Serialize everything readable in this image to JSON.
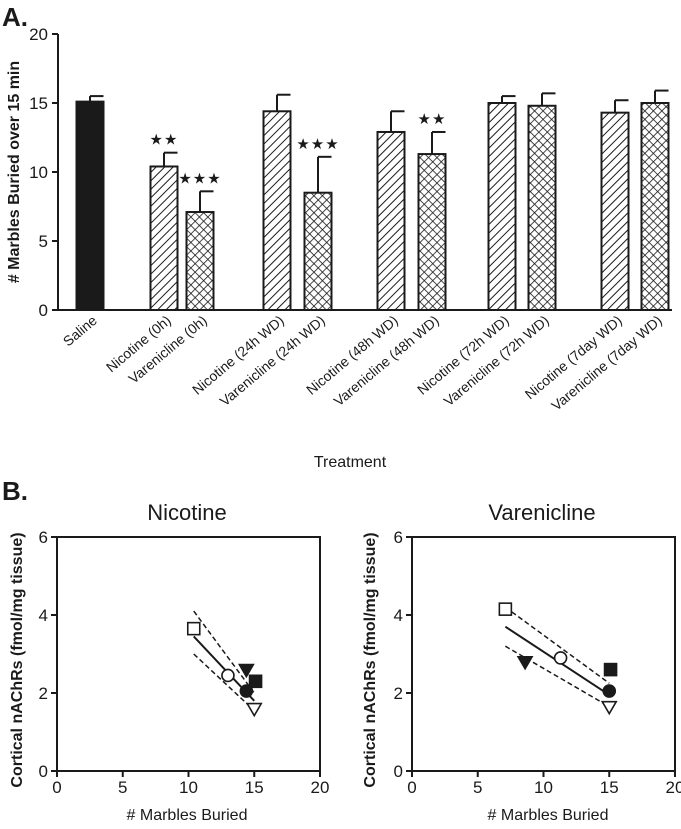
{
  "panels": {
    "a_label": "A.",
    "b_label": "B."
  },
  "chart_data": [
    {
      "type": "bar",
      "ylabel": "# Marbles Buried over 15 min",
      "xlabel": "Treatment",
      "ylim": [
        0,
        20
      ],
      "yticks": [
        "0",
        "5",
        "10",
        "15",
        "20"
      ],
      "grid": false,
      "categories": [
        "Saline",
        "Nicotine (0h)",
        "Varenicline (0h)",
        "Nicotine (24h WD)",
        "Varenicline (24h WD)",
        "Nicotine (48h WD)",
        "Varenicline (48h WD)",
        "Nicotine (72h WD)",
        "Varenicline (72h WD)",
        "Nicotine (7day WD)",
        "Varenicline (7day WD)"
      ],
      "values": [
        15.1,
        10.4,
        7.1,
        14.4,
        8.5,
        12.9,
        11.3,
        15.0,
        14.8,
        14.3,
        15.0
      ],
      "errors": [
        0.4,
        1.0,
        1.5,
        1.2,
        2.6,
        1.5,
        1.6,
        0.5,
        0.9,
        0.9,
        0.9
      ],
      "significance": [
        "",
        "★★",
        "★★★",
        "",
        "★★★",
        "",
        "★★",
        "",
        "",
        "",
        ""
      ],
      "fills": [
        "solid",
        "hatch",
        "crosshatch",
        "hatch",
        "crosshatch",
        "hatch",
        "crosshatch",
        "hatch",
        "crosshatch",
        "hatch",
        "crosshatch"
      ]
    },
    {
      "type": "scatter",
      "title": "Nicotine",
      "xlabel": "# Marbles Buried",
      "ylabel": "Cortical nAChRs (fmol/mg tissue)",
      "xlim": [
        0,
        20
      ],
      "ylim": [
        0,
        6
      ],
      "xticks": [
        "0",
        "5",
        "10",
        "15",
        "20"
      ],
      "yticks": [
        "0",
        "2",
        "4",
        "6"
      ],
      "points": [
        {
          "x": 10.4,
          "y": 3.65,
          "marker": "open-square"
        },
        {
          "x": 13.0,
          "y": 2.45,
          "marker": "open-circle"
        },
        {
          "x": 14.4,
          "y": 2.05,
          "marker": "filled-circle"
        },
        {
          "x": 14.4,
          "y": 2.6,
          "marker": "filled-triangle-down"
        },
        {
          "x": 15.1,
          "y": 2.3,
          "marker": "filled-square"
        },
        {
          "x": 15.0,
          "y": 1.6,
          "marker": "open-triangle-down"
        }
      ],
      "fit": {
        "x": [
          10.4,
          15.0
        ],
        "y": [
          3.45,
          1.8
        ]
      },
      "ci_upper": {
        "x": [
          10.4,
          15.0
        ],
        "y": [
          4.1,
          2.0
        ]
      },
      "ci_lower": {
        "x": [
          10.4,
          15.0
        ],
        "y": [
          3.0,
          1.55
        ]
      }
    },
    {
      "type": "scatter",
      "title": "Varenicline",
      "xlabel": "# Marbles Buried",
      "ylabel": "Cortical nAChRs (fmol/mg tissue)",
      "xlim": [
        0,
        20
      ],
      "ylim": [
        0,
        6
      ],
      "xticks": [
        "0",
        "5",
        "10",
        "15",
        "20"
      ],
      "yticks": [
        "0",
        "2",
        "4",
        "6"
      ],
      "points": [
        {
          "x": 7.1,
          "y": 4.15,
          "marker": "open-square"
        },
        {
          "x": 11.3,
          "y": 2.9,
          "marker": "open-circle"
        },
        {
          "x": 15.0,
          "y": 2.05,
          "marker": "filled-circle"
        },
        {
          "x": 8.6,
          "y": 2.8,
          "marker": "filled-triangle-down"
        },
        {
          "x": 15.1,
          "y": 2.6,
          "marker": "filled-square"
        },
        {
          "x": 15.0,
          "y": 1.65,
          "marker": "open-triangle-down"
        }
      ],
      "fit": {
        "x": [
          7.1,
          15.0
        ],
        "y": [
          3.7,
          1.95
        ]
      },
      "ci_upper": {
        "x": [
          7.1,
          15.0
        ],
        "y": [
          4.2,
          2.25
        ]
      },
      "ci_lower": {
        "x": [
          7.1,
          15.0
        ],
        "y": [
          3.2,
          1.65
        ]
      }
    }
  ]
}
